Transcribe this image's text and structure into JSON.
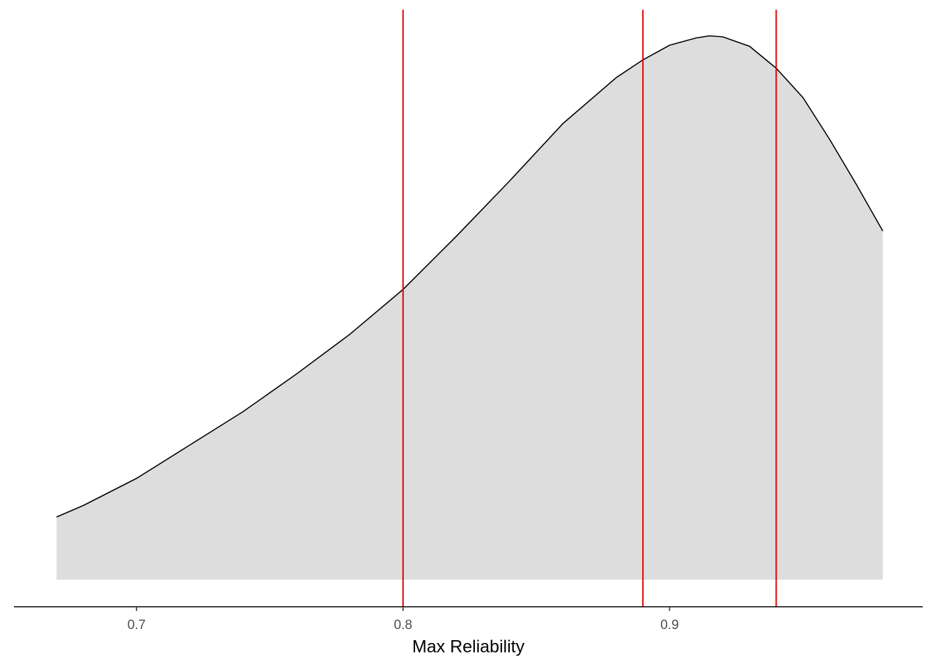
{
  "chart_data": {
    "type": "density",
    "x_label": "Max Reliability",
    "x": [
      0.67,
      0.68,
      0.7,
      0.72,
      0.74,
      0.76,
      0.78,
      0.8,
      0.82,
      0.84,
      0.86,
      0.88,
      0.89,
      0.9,
      0.91,
      0.915,
      0.92,
      0.93,
      0.94,
      0.95,
      0.96,
      0.97,
      0.98
    ],
    "values": [
      0.6,
      0.71,
      0.97,
      1.29,
      1.61,
      1.97,
      2.35,
      2.78,
      3.29,
      3.82,
      4.37,
      4.81,
      4.98,
      5.12,
      5.19,
      5.21,
      5.2,
      5.11,
      4.9,
      4.62,
      4.22,
      3.79,
      3.34
    ],
    "fill_color": "#dddddd",
    "line_color": "#000000",
    "vlines": [
      0.8,
      0.89,
      0.94
    ],
    "vline_color": "#dd0000",
    "xlim": [
      0.654,
      0.995
    ],
    "ylim": [
      -0.26,
      5.46
    ],
    "xticks": [
      0.7,
      0.8,
      0.9
    ]
  }
}
